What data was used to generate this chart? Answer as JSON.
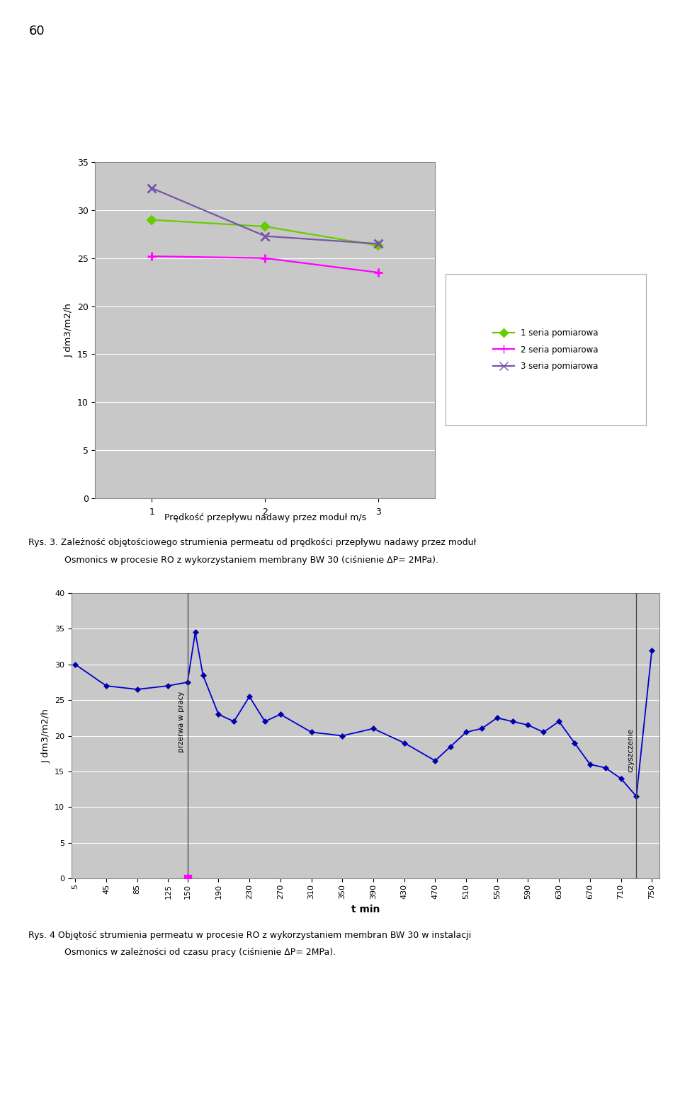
{
  "chart1": {
    "series1": {
      "x": [
        1,
        2,
        3
      ],
      "y": [
        29.0,
        28.3,
        26.3
      ],
      "color": "#66cc00",
      "marker": "D",
      "label": "1 seria pomiarowa"
    },
    "series2": {
      "x": [
        1,
        2,
        3
      ],
      "y": [
        25.2,
        25.0,
        23.5
      ],
      "color": "#ff00ff",
      "marker": "+",
      "label": "2 seria pomiarowa"
    },
    "series3": {
      "x": [
        1,
        2,
        3
      ],
      "y": [
        32.3,
        27.3,
        26.5
      ],
      "color": "#7755aa",
      "marker": "x",
      "label": "3 seria pomiarowa"
    },
    "ylabel": "J dm3/m2/h",
    "xlabel_normal": "Prędkość przepływu ",
    "xlabel_bold": "nadawy przez",
    "xlabel_normal2": " moduł m/s",
    "xlabel_full": "Prędkość przepływu nadawy przez moduł m/s",
    "ylim": [
      0,
      35
    ],
    "xlim": [
      0.5,
      3.5
    ],
    "yticks": [
      0,
      5,
      10,
      15,
      20,
      25,
      30,
      35
    ],
    "xticks": [
      1,
      2,
      3
    ],
    "bg_color": "#c8c8c8"
  },
  "chart2": {
    "x": [
      5,
      45,
      85,
      125,
      150,
      160,
      170,
      190,
      210,
      230,
      250,
      270,
      310,
      350,
      390,
      430,
      470,
      490,
      510,
      530,
      550,
      570,
      590,
      610,
      630,
      650,
      670,
      690,
      710,
      730,
      750
    ],
    "y": [
      30,
      27,
      26.5,
      27,
      27.5,
      34.5,
      28.5,
      23,
      22,
      25.5,
      22,
      23,
      20.5,
      20,
      21,
      19,
      16.5,
      18.5,
      20.5,
      21,
      22.5,
      22,
      21.5,
      20.5,
      22,
      19,
      16,
      15.5,
      14,
      11.5,
      32
    ],
    "break_x": 150,
    "break_marker_y": 0,
    "break_label": "przerwa w pracy",
    "clean_x": 730,
    "clean_label": "czyszczenie",
    "ylabel": "J dm3/m2/h",
    "xlabel": "t min",
    "ylim": [
      0,
      40
    ],
    "xlim": [
      0,
      760
    ],
    "yticks": [
      0,
      5,
      10,
      15,
      20,
      25,
      30,
      35,
      40
    ],
    "xticks": [
      5,
      45,
      85,
      125,
      150,
      190,
      230,
      270,
      310,
      350,
      390,
      430,
      470,
      510,
      550,
      590,
      630,
      670,
      710,
      750
    ],
    "bg_color": "#c8c8c8",
    "line_color": "#0000cc",
    "marker_color": "#0000aa"
  },
  "caption1_line1": "Rys. 3. Zależność objętościowego strumienia permeatu od prędkości przepływu nadawy przez moduł",
  "caption1_line2": "Osmonics w procesie RO z wykorzystaniem membrany BW 30 (ciśnienie ΔP= 2MPa).",
  "caption2_line1": "Rys. 4 Objętość strumienia permeatu w procesie RO z wykorzystaniem membran BW 30 w instalacji",
  "caption2_line2": "Osmonics w zależności od czasu pracy (ciśnienie ΔP= 2MPa).",
  "page_number": "60",
  "bg_page": "#ffffff"
}
